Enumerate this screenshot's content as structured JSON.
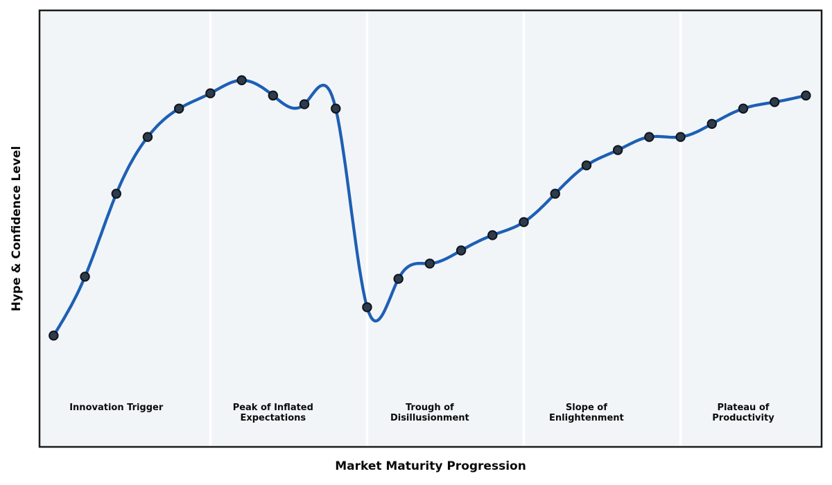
{
  "chart_data": {
    "type": "line",
    "title": "",
    "xlabel": "Market Maturity Progression",
    "ylabel": "Hype & Confidence Level",
    "x": [
      0,
      1,
      2,
      3,
      4,
      5,
      6,
      7,
      8,
      9,
      10,
      11,
      12,
      13,
      14,
      15,
      16,
      17,
      18,
      19,
      20,
      21,
      22,
      23,
      24
    ],
    "values": [
      25.5,
      39,
      58,
      71,
      77.5,
      81,
      84,
      80.5,
      78.5,
      77.5,
      32,
      38.5,
      42,
      45,
      48.5,
      51.5,
      58,
      64.5,
      68,
      71,
      71,
      74,
      77.5,
      79,
      80.5
    ],
    "xlim": [
      -0.45,
      24.5
    ],
    "ylim": [
      0,
      100
    ],
    "grid": false,
    "legend": null,
    "ticks": "none",
    "marker": "circle",
    "smoothing": "cubic-spline",
    "phase_boundaries_x": [
      5,
      10,
      15,
      20
    ],
    "phases": [
      {
        "label_x": 2,
        "lines": [
          "Innovation Trigger"
        ]
      },
      {
        "label_x": 7,
        "lines": [
          "Peak of Inflated",
          "Expectations"
        ]
      },
      {
        "label_x": 12,
        "lines": [
          "Trough of",
          "Disillusionment"
        ]
      },
      {
        "label_x": 17,
        "lines": [
          "Slope of",
          "Enlightenment"
        ]
      },
      {
        "label_x": 22,
        "lines": [
          "Plateau of",
          "Productivity"
        ]
      }
    ],
    "colors": {
      "line": "#1e5fb4",
      "marker_fill": "#2e3b4c",
      "marker_edge": "#0e141b",
      "plot_background": "#f1f5f8",
      "phase_separator": "#ffffff",
      "spine": "#1b1b1b",
      "text": "#0a0a0a",
      "figure_background": "#ffffff"
    }
  }
}
